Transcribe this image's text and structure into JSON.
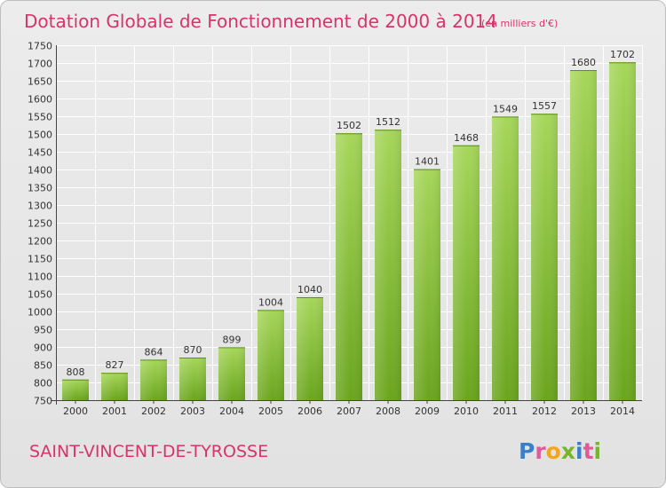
{
  "title": "Dotation Globale de Fonctionnement de 2000 à 2014",
  "unit": "(en milliers d'€)",
  "location": "SAINT-VINCENT-DE-TYROSSE",
  "logo": {
    "text": "Proxiti",
    "letters": [
      "P",
      "r",
      "o",
      "x",
      "i",
      "t",
      "i"
    ],
    "colors": [
      "#3d7fc4",
      "#e05a9a",
      "#f2a51f",
      "#7ab32d",
      "#3d7fc4",
      "#e05a9a",
      "#7ab32d"
    ]
  },
  "colors": {
    "title": "#d6346b",
    "bar_light": "#a6d65a",
    "bar_dark": "#6aa51e",
    "grid": "#ffffff"
  },
  "chart_data": {
    "type": "bar",
    "categories": [
      "2000",
      "2001",
      "2002",
      "2003",
      "2004",
      "2005",
      "2006",
      "2007",
      "2008",
      "2009",
      "2010",
      "2011",
      "2012",
      "2013",
      "2014"
    ],
    "values": [
      808,
      827,
      864,
      870,
      899,
      1004,
      1040,
      1502,
      1512,
      1401,
      1468,
      1549,
      1557,
      1680,
      1702
    ],
    "ylim": [
      750,
      1750
    ],
    "yticks": [
      750,
      800,
      850,
      900,
      950,
      1000,
      1050,
      1100,
      1150,
      1200,
      1250,
      1300,
      1350,
      1400,
      1450,
      1500,
      1550,
      1600,
      1650,
      1700,
      1750
    ],
    "grid": true,
    "data_labels": true
  }
}
